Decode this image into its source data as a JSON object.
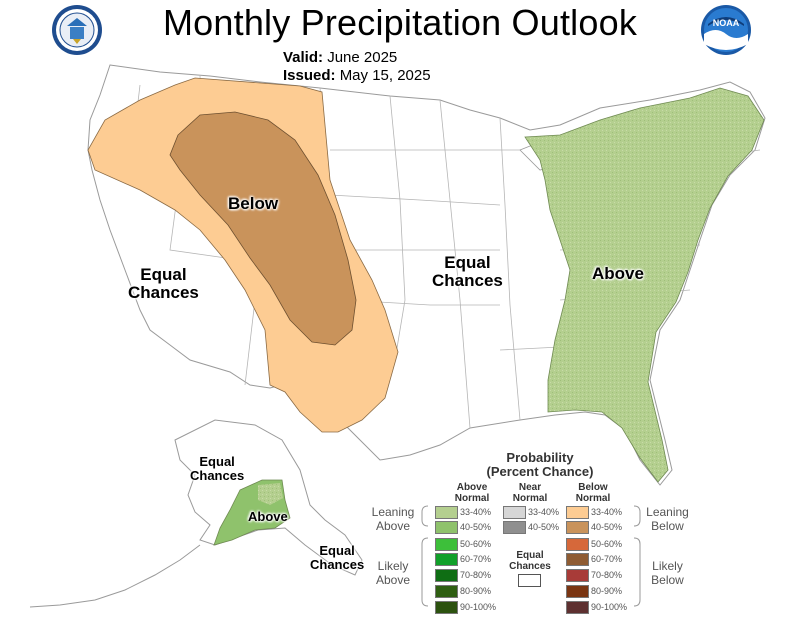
{
  "header": {
    "title": "Monthly Precipitation Outlook",
    "valid_label": "Valid:",
    "valid_value": "June 2025",
    "issued_label": "Issued:",
    "issued_value": "May 15, 2025"
  },
  "logos": {
    "left": "doc-seal-icon",
    "right": "noaa-logo-icon"
  },
  "map_labels": {
    "below": "Below",
    "equal_west": [
      "Equal",
      "Chances"
    ],
    "equal_central": [
      "Equal",
      "Chances"
    ],
    "above_east": "Above",
    "ak_equal_north": [
      "Equal",
      "Chances"
    ],
    "ak_above": "Above",
    "ak_equal_south": [
      "Equal",
      "Chances"
    ]
  },
  "legend": {
    "title": "Probability",
    "subtitle": "(Percent Chance)",
    "col_above": [
      "Above",
      "Normal"
    ],
    "col_near": [
      "Near",
      "Normal"
    ],
    "col_below": [
      "Below",
      "Normal"
    ],
    "leaning_left": [
      "Leaning",
      "Above"
    ],
    "leaning_right": [
      "Leaning",
      "Below"
    ],
    "likely_left": [
      "Likely",
      "Above"
    ],
    "likely_right": [
      "Likely",
      "Below"
    ],
    "equal": [
      "Equal",
      "Chances"
    ],
    "above_bins": [
      {
        "label": "33-40%",
        "color": "#b4cf8f"
      },
      {
        "label": "40-50%",
        "color": "#8fc26c"
      },
      {
        "label": "50-60%",
        "color": "#3dbf3a"
      },
      {
        "label": "60-70%",
        "color": "#11a02a"
      },
      {
        "label": "70-80%",
        "color": "#0f6e14"
      },
      {
        "label": "80-90%",
        "color": "#2f5f12"
      },
      {
        "label": "90-100%",
        "color": "#2c520f"
      }
    ],
    "near_bins": [
      {
        "label": "33-40%",
        "color": "#d6d6d6"
      },
      {
        "label": "40-50%",
        "color": "#8f8f8f"
      }
    ],
    "below_bins": [
      {
        "label": "33-40%",
        "color": "#fdcc93"
      },
      {
        "label": "40-50%",
        "color": "#c9935b"
      },
      {
        "label": "50-60%",
        "color": "#d6683a"
      },
      {
        "label": "60-70%",
        "color": "#8f5c33"
      },
      {
        "label": "70-80%",
        "color": "#a83b38"
      },
      {
        "label": "80-90%",
        "color": "#7a3512"
      },
      {
        "label": "90-100%",
        "color": "#5e3030"
      }
    ]
  },
  "colors": {
    "below_33": "#fdcc93",
    "below_40": "#c9935b",
    "above_33": "#b4cf8f",
    "above_40": "#8fc26c",
    "border": "#9a9a9a"
  }
}
